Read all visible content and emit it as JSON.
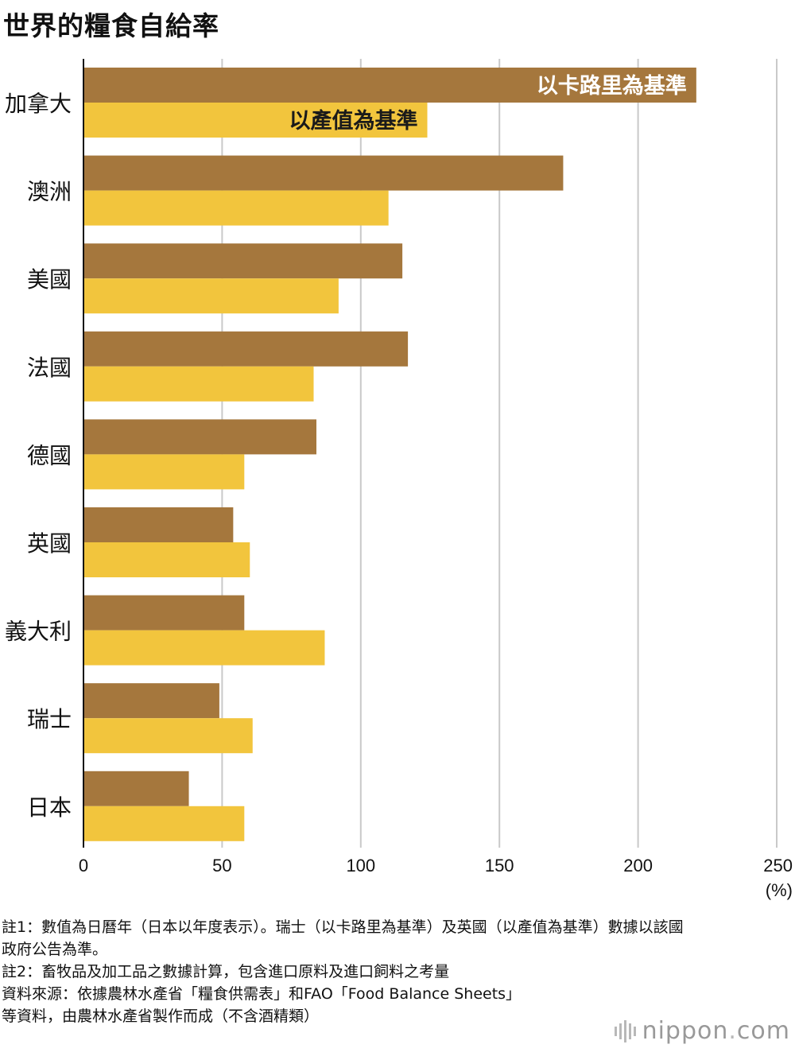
{
  "title": "世界的糧食自給率",
  "chart_data": {
    "type": "bar",
    "orientation": "horizontal",
    "categories": [
      "加拿大",
      "澳洲",
      "美國",
      "法國",
      "德國",
      "英國",
      "義大利",
      "瑞士",
      "日本"
    ],
    "series": [
      {
        "name": "以卡路里為基準",
        "color": "#a5773d",
        "values": [
          221,
          173,
          115,
          117,
          84,
          54,
          58,
          49,
          38
        ]
      },
      {
        "name": "以產值為基準",
        "color": "#f2c53d",
        "values": [
          124,
          110,
          92,
          83,
          58,
          60,
          87,
          61,
          58
        ]
      }
    ],
    "xlim": [
      0,
      250
    ],
    "ticks": [
      0,
      50,
      100,
      150,
      200,
      250
    ],
    "tick_labels": [
      "0",
      "50",
      "100",
      "150",
      "200",
      "250"
    ],
    "unit_label": "(%)",
    "grid": true,
    "legend": "inline labels on first category bars"
  },
  "notes": [
    "註1：數值為日曆年（日本以年度表示）。瑞士（以卡路里為基準）及英國（以產值為基準）數據以該國",
    "政府公告為準。",
    "註2：畜牧品及加工品之數據計算，包含進口原料及進口飼料之考量",
    "資料來源：依據農林水產省「糧食供需表」和FAO「Food Balance Sheets」",
    "等資料，由農林水產省製作而成（不含酒精類）"
  ],
  "logo": {
    "name": "nippon",
    "dot": ".",
    "suffix": "com"
  }
}
